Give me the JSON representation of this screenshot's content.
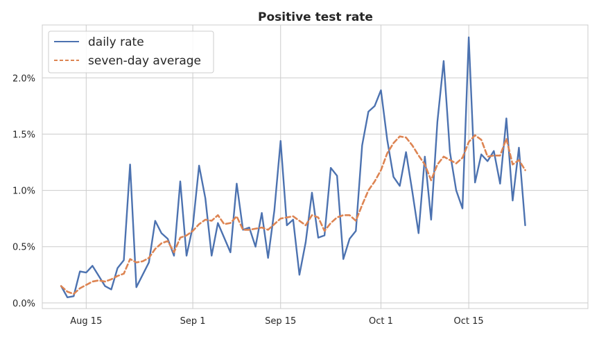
{
  "chart_data": {
    "type": "line",
    "title": "Positive test rate",
    "xlabel": "",
    "ylabel": "",
    "x_start": "2020-08-11",
    "x_ticks": [
      {
        "date": "2020-08-15",
        "label": "Aug 15"
      },
      {
        "date": "2020-09-01",
        "label": "Sep 1"
      },
      {
        "date": "2020-09-15",
        "label": "Sep 15"
      },
      {
        "date": "2020-10-01",
        "label": "Oct 1"
      },
      {
        "date": "2020-10-15",
        "label": "Oct 15"
      }
    ],
    "y_ticks": [
      {
        "value": 0.0,
        "label": "0.0%"
      },
      {
        "value": 0.5,
        "label": "0.5%"
      },
      {
        "value": 1.0,
        "label": "1.0%"
      },
      {
        "value": 1.5,
        "label": "1.5%"
      },
      {
        "value": 2.0,
        "label": "2.0%"
      }
    ],
    "xlim": [
      "2020-08-08",
      "2020-11-03"
    ],
    "ylim": [
      -0.05,
      2.47
    ],
    "grid": true,
    "legend_position": "top-left",
    "series": [
      {
        "name": "daily rate",
        "color": "#4c72b0",
        "dash": "solid",
        "values": [
          0.15,
          0.05,
          0.06,
          0.28,
          0.27,
          0.33,
          0.24,
          0.15,
          0.12,
          0.31,
          0.38,
          1.23,
          0.14,
          0.25,
          0.36,
          0.73,
          0.62,
          0.57,
          0.42,
          1.08,
          0.42,
          0.68,
          1.22,
          0.93,
          0.42,
          0.71,
          0.58,
          0.45,
          1.06,
          0.65,
          0.67,
          0.5,
          0.8,
          0.4,
          0.82,
          1.44,
          0.69,
          0.74,
          0.25,
          0.54,
          0.98,
          0.58,
          0.6,
          1.2,
          1.13,
          0.39,
          0.57,
          0.64,
          1.4,
          1.7,
          1.75,
          1.89,
          1.45,
          1.12,
          1.04,
          1.34,
          0.99,
          0.62,
          1.3,
          0.74,
          1.61,
          2.15,
          1.34,
          1.0,
          0.84,
          2.36,
          1.07,
          1.32,
          1.26,
          1.35,
          1.06,
          1.64,
          0.91,
          1.38,
          0.69
        ]
      },
      {
        "name": "seven-day average",
        "color": "#dd8452",
        "dash": "dashed",
        "values": [
          0.15,
          0.1,
          0.08,
          0.13,
          0.16,
          0.19,
          0.2,
          0.19,
          0.21,
          0.24,
          0.26,
          0.39,
          0.36,
          0.37,
          0.4,
          0.48,
          0.53,
          0.55,
          0.45,
          0.58,
          0.6,
          0.64,
          0.7,
          0.74,
          0.73,
          0.78,
          0.7,
          0.71,
          0.77,
          0.65,
          0.65,
          0.66,
          0.67,
          0.65,
          0.7,
          0.75,
          0.76,
          0.77,
          0.73,
          0.69,
          0.78,
          0.76,
          0.64,
          0.71,
          0.76,
          0.78,
          0.78,
          0.73,
          0.87,
          1.0,
          1.08,
          1.18,
          1.33,
          1.42,
          1.48,
          1.47,
          1.4,
          1.31,
          1.23,
          1.09,
          1.23,
          1.3,
          1.27,
          1.24,
          1.29,
          1.43,
          1.49,
          1.45,
          1.3,
          1.31,
          1.31,
          1.46,
          1.23,
          1.27,
          1.18
        ]
      }
    ]
  }
}
